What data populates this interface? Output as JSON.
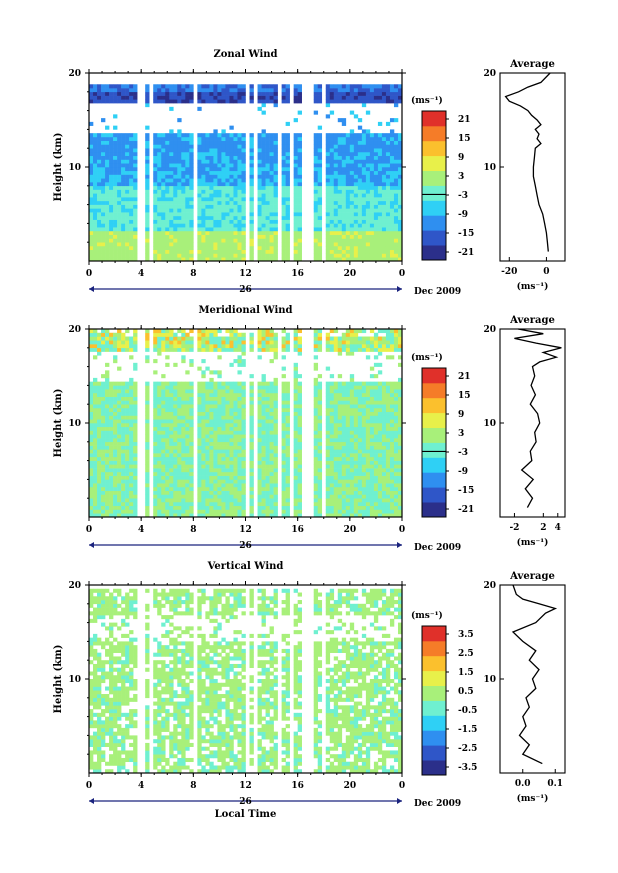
{
  "chart_data": [
    {
      "type": "heatmap",
      "title": "Zonal Wind",
      "ylabel": "Height (km)",
      "ylim": [
        0,
        20
      ],
      "y_ticks": [
        "10",
        "20"
      ],
      "xlabel": "",
      "x_ticks": [
        "0",
        "4",
        "8",
        "12",
        "16",
        "20",
        "0"
      ],
      "date_day": "26",
      "date_label": "Dec 2009",
      "colorbar": {
        "unit": "(ms⁻¹)",
        "ticks": [
          "21",
          "15",
          "9",
          "3",
          "-3",
          "-9",
          "-15",
          "-21"
        ],
        "range": [
          -24,
          24
        ]
      },
      "profile": {
        "title": "Average",
        "xlabel": "(ms⁻¹)",
        "x_ticks": [
          "-20",
          "0"
        ],
        "xlim": [
          -25,
          10
        ],
        "y_ticks": [
          "10",
          "20"
        ],
        "heights": [
          1.0,
          2.0,
          3.0,
          4.0,
          5.0,
          6.0,
          7.0,
          8.0,
          9.0,
          10.0,
          11.0,
          12.0,
          12.5,
          13.0,
          13.5,
          14.0,
          14.5,
          15.0,
          15.5,
          16.0,
          16.5,
          17.0,
          17.5,
          18.0,
          18.5,
          19.0,
          20.0
        ],
        "values": [
          1.0,
          0.5,
          0,
          -1,
          -2,
          -4,
          -5,
          -6,
          -7,
          -7,
          -6.5,
          -6,
          -3,
          -5,
          -4,
          -6,
          -3,
          -5,
          -8,
          -10,
          -14,
          -20,
          -22,
          -15,
          -10,
          -3,
          2
        ]
      }
    },
    {
      "type": "heatmap",
      "title": "Meridional Wind",
      "ylabel": "Height (km)",
      "ylim": [
        0,
        20
      ],
      "y_ticks": [
        "10",
        "20"
      ],
      "xlabel": "",
      "x_ticks": [
        "0",
        "4",
        "8",
        "12",
        "16",
        "20",
        "0"
      ],
      "date_day": "26",
      "date_label": "Dec 2009",
      "colorbar": {
        "unit": "(ms⁻¹)",
        "ticks": [
          "21",
          "15",
          "9",
          "3",
          "-3",
          "-9",
          "-15",
          "-21"
        ],
        "range": [
          -24,
          24
        ]
      },
      "profile": {
        "title": "Average",
        "xlabel": "(ms⁻¹)",
        "x_ticks": [
          "-2",
          "2",
          "4"
        ],
        "xlim": [
          -4,
          5
        ],
        "y_ticks": [
          "10",
          "20"
        ],
        "heights": [
          1.0,
          2.0,
          3.0,
          4.0,
          5.0,
          6.0,
          7.0,
          8.0,
          9.0,
          10.0,
          11.0,
          12.0,
          13.0,
          14.0,
          15.0,
          16.0,
          16.5,
          17.0,
          17.5,
          18.0,
          18.5,
          19.0,
          19.5,
          20.0
        ],
        "values": [
          -0.2,
          0.5,
          -0.5,
          0.6,
          -1.0,
          0.4,
          0.2,
          1.0,
          0.8,
          1.5,
          1.2,
          0.2,
          0.9,
          0.3,
          0.8,
          0.5,
          1.5,
          3.8,
          2.0,
          4.5,
          1.0,
          -2.0,
          2.0,
          -1.5
        ]
      }
    },
    {
      "type": "heatmap",
      "title": "Vertical Wind",
      "ylabel": "Height (km)",
      "ylim": [
        0,
        20
      ],
      "y_ticks": [
        "10",
        "20"
      ],
      "xlabel": "Local Time",
      "x_ticks": [
        "0",
        "4",
        "8",
        "12",
        "16",
        "20",
        "0"
      ],
      "date_day": "26",
      "date_label": "Dec 2009",
      "colorbar": {
        "unit": "(ms⁻¹)",
        "ticks": [
          "3.5",
          "2.5",
          "1.5",
          "0.5",
          "-0.5",
          "-1.5",
          "-2.5",
          "-3.5"
        ],
        "range": [
          -4,
          4
        ]
      },
      "profile": {
        "title": "Average",
        "xlabel": "(ms⁻¹)",
        "x_ticks": [
          "0.0",
          "0.1"
        ],
        "xlim": [
          -0.07,
          0.13
        ],
        "y_ticks": [
          "10",
          "20"
        ],
        "heights": [
          1.0,
          2.0,
          3.0,
          4.0,
          5.0,
          6.0,
          7.0,
          8.0,
          9.0,
          10.0,
          11.0,
          12.0,
          13.0,
          14.0,
          15.0,
          16.0,
          17.0,
          17.5,
          18.0,
          18.5,
          19.0,
          20.0
        ],
        "values": [
          0.06,
          0.0,
          0.02,
          -0.01,
          0.01,
          0.0,
          0.02,
          0.01,
          0.04,
          0.03,
          0.05,
          0.02,
          0.04,
          0.0,
          -0.03,
          0.04,
          0.07,
          0.1,
          0.05,
          0.0,
          -0.02,
          -0.03
        ]
      }
    }
  ]
}
